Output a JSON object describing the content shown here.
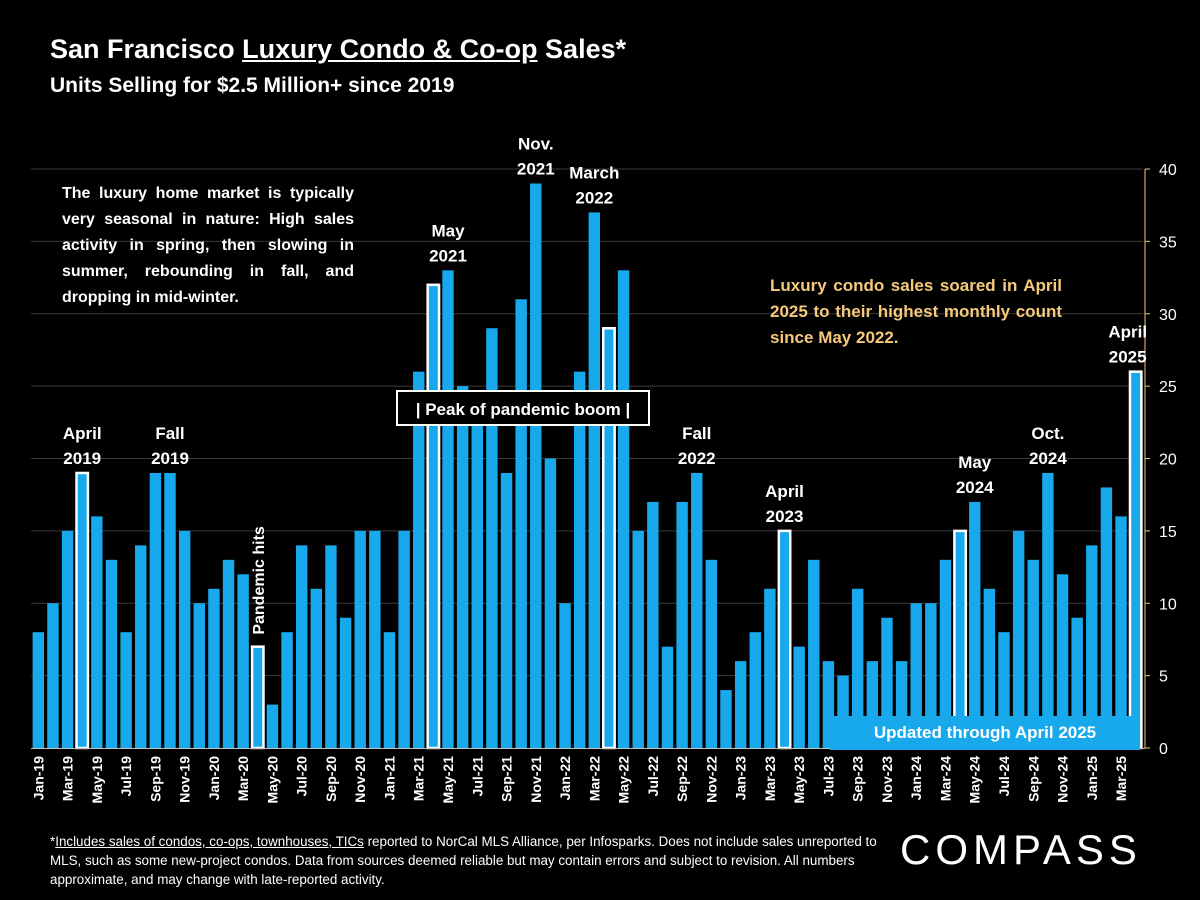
{
  "header": {
    "title_prefix": "San Francisco ",
    "title_underlined": "Luxury Condo & Co-op",
    "title_suffix": " Sales*",
    "subtitle": "Units Selling for $2.5 Million+ since 2019"
  },
  "notes": {
    "left": "The luxury home market is typically very seasonal in nature: High sales activity in spring, then slowing in summer, rebounding in fall, and dropping in mid-winter.",
    "right": "Luxury condo sales soared in April 2025 to their highest monthly count since May 2022.",
    "peak": "| Peak of pandemic boom |",
    "updated": "Updated through April 2025"
  },
  "footnote": {
    "underlined": "Includes sales of condos, co-ops, townhouses, TICs",
    "prefix": "*",
    "rest": " reported to NorCal MLS Alliance, per Infosparks. Does not include sales unreported to MLS, such as some new-project condos. Data from sources deemed reliable but may contain errors and subject to revision.  All numbers approximate, and may change with late-reported activity."
  },
  "logo": "COMPASS",
  "colors": {
    "bar": "#17a9ec",
    "highlight_border": "#ffffff",
    "background": "#000000",
    "note_right": "#f6c97a",
    "axis": "#f2c57f"
  },
  "chart_data": {
    "type": "bar",
    "ylim": [
      0,
      40
    ],
    "yticks": [
      0,
      5,
      10,
      15,
      20,
      25,
      30,
      35,
      40
    ],
    "grid": true,
    "x_tick_labels": [
      "Jan-19",
      "Mar-19",
      "May-19",
      "Jul-19",
      "Sep-19",
      "Nov-19",
      "Jan-20",
      "Mar-20",
      "May-20",
      "Jul-20",
      "Sep-20",
      "Nov-20",
      "Jan-21",
      "Mar-21",
      "May-21",
      "Jul-21",
      "Sep-21",
      "Nov-21",
      "Jan-22",
      "Mar-22",
      "May-22",
      "Jul-22",
      "Sep-22",
      "Nov-22",
      "Jan-23",
      "Mar-23",
      "May-23",
      "Jul-23",
      "Sep-23",
      "Nov-23",
      "Jan-24",
      "Mar-24",
      "May-24",
      "Jul-24",
      "Sep-24",
      "Nov-24",
      "Jan-25",
      "Mar-25"
    ],
    "values": [
      8,
      10,
      15,
      19,
      16,
      13,
      8,
      14,
      19,
      19,
      15,
      10,
      11,
      13,
      12,
      7,
      3,
      8,
      14,
      11,
      14,
      9,
      15,
      15,
      8,
      15,
      26,
      32,
      33,
      25,
      24,
      29,
      19,
      31,
      39,
      20,
      10,
      26,
      37,
      29,
      33,
      15,
      17,
      7,
      17,
      19,
      13,
      4,
      6,
      8,
      11,
      15,
      7,
      13,
      6,
      5,
      11,
      6,
      9,
      6,
      10,
      10,
      13,
      15,
      17,
      11,
      8,
      15,
      13,
      19,
      12,
      9,
      14,
      18,
      16,
      26
    ],
    "highlighted_months": [
      "Apr-19",
      "Apr-20",
      "Apr-21",
      "Apr-22",
      "Apr-23",
      "Apr-24",
      "Apr-25"
    ],
    "annotations": [
      {
        "text": [
          "April",
          "2019"
        ],
        "month_index": 3
      },
      {
        "text": [
          "Fall",
          "2019"
        ],
        "month_index": 9
      },
      {
        "text": [
          "May",
          "2021"
        ],
        "month_index": 28
      },
      {
        "text": [
          "Nov.",
          "2021"
        ],
        "month_index": 34
      },
      {
        "text": [
          "March",
          "2022"
        ],
        "month_index": 38
      },
      {
        "text": [
          "Fall",
          "2022"
        ],
        "month_index": 45
      },
      {
        "text": [
          "April",
          "2023"
        ],
        "month_index": 51
      },
      {
        "text": [
          "May",
          "2024"
        ],
        "month_index": 64
      },
      {
        "text": [
          "Oct.",
          "2024"
        ],
        "month_index": 69
      },
      {
        "text": [
          "April",
          "2025"
        ],
        "month_index": 75
      }
    ],
    "vertical_annotation": {
      "text": "Pandemic hits",
      "month_index": 15
    }
  }
}
